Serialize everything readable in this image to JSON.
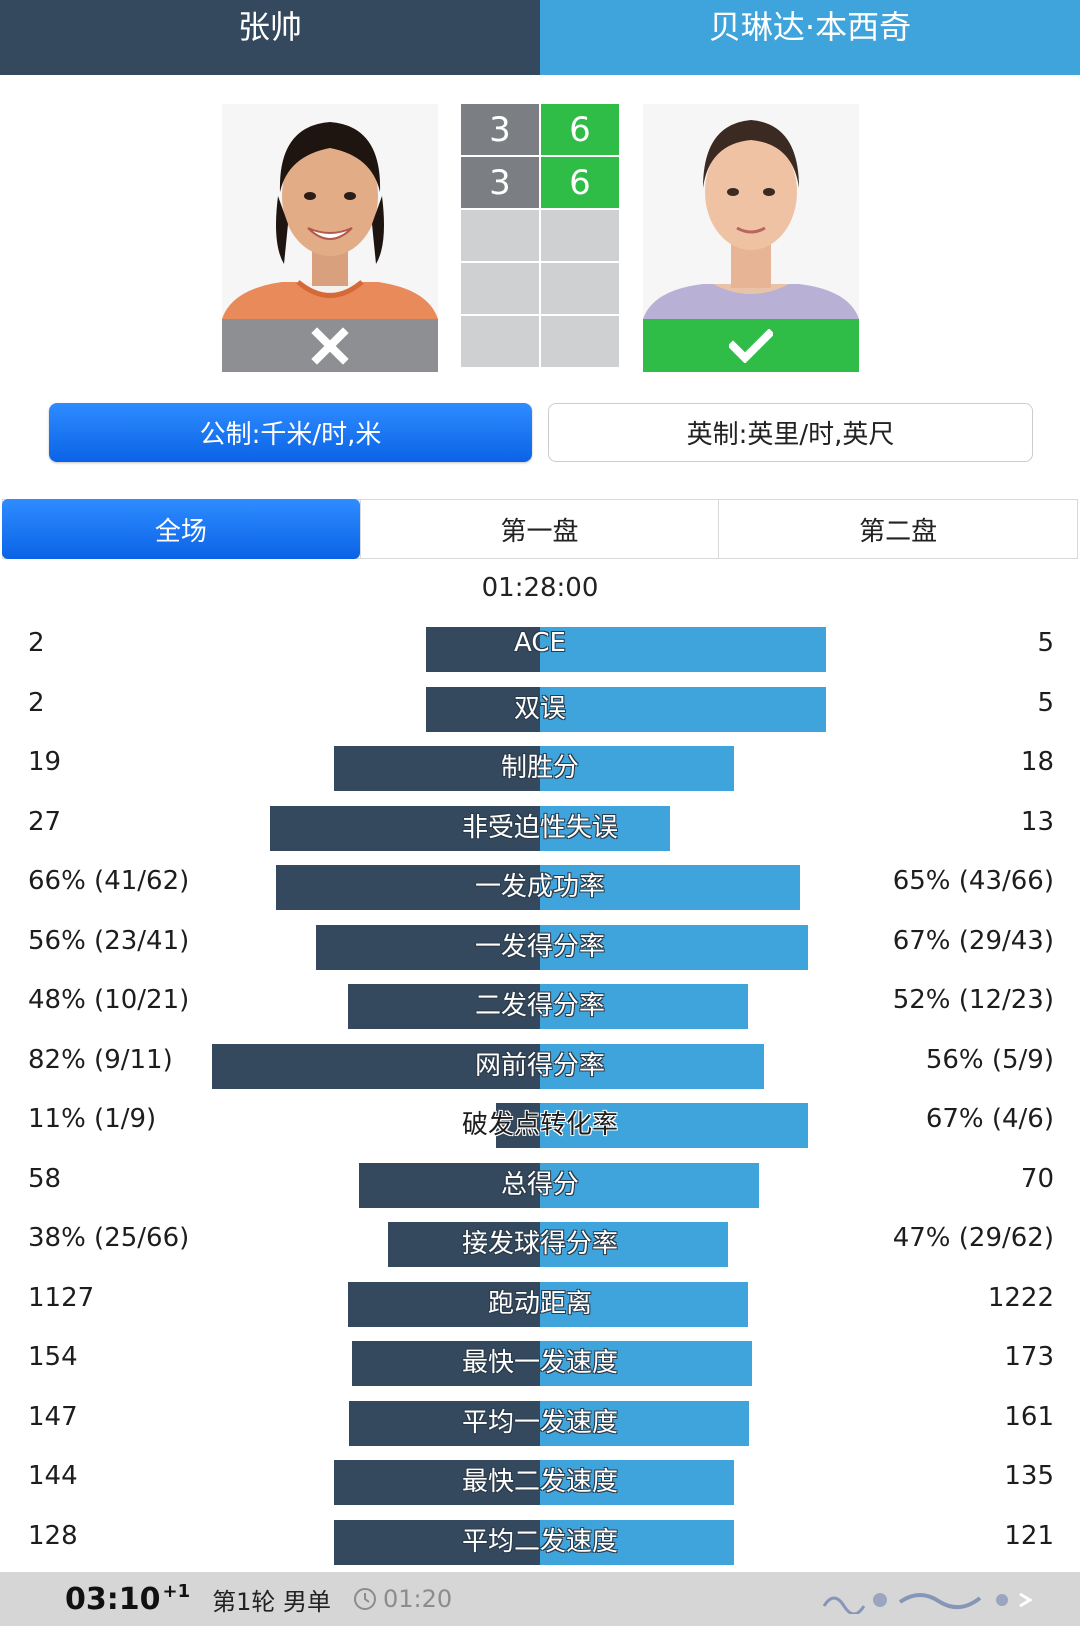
{
  "players": {
    "left": {
      "name": "张帅",
      "result": "loss",
      "result_icon": "x-mark-icon"
    },
    "right": {
      "name": "贝琳达·本西奇",
      "result": "win",
      "result_icon": "check-mark-icon"
    }
  },
  "scoreboard": {
    "sets": [
      {
        "left": "3",
        "right": "6"
      },
      {
        "left": "3",
        "right": "6"
      },
      {
        "left": "",
        "right": ""
      },
      {
        "left": "",
        "right": ""
      },
      {
        "left": "",
        "right": ""
      }
    ]
  },
  "units": {
    "metric_label": "公制:千米/时,米",
    "imperial_label": "英制:英里/时,英尺",
    "selected": "metric"
  },
  "tabs": [
    {
      "label": "全场",
      "active": true
    },
    {
      "label": "第一盘",
      "active": false
    },
    {
      "label": "第二盘",
      "active": false
    }
  ],
  "duration": "01:28:00",
  "stats": [
    {
      "label": "ACE",
      "left": "2",
      "right": "5",
      "left_share": 0.286,
      "right_share": 0.714
    },
    {
      "label": "双误",
      "left": "2",
      "right": "5",
      "left_share": 0.286,
      "right_share": 0.714
    },
    {
      "label": "制胜分",
      "left": "19",
      "right": "18",
      "left_share": 0.514,
      "right_share": 0.486
    },
    {
      "label": "非受迫性失误",
      "left": "27",
      "right": "13",
      "left_share": 0.675,
      "right_share": 0.325
    },
    {
      "label": "一发成功率",
      "left": "66% (41/62)",
      "right": "65% (43/66)",
      "left_share": 0.66,
      "right_share": 0.65
    },
    {
      "label": "一发得分率",
      "left": "56% (23/41)",
      "right": "67% (29/43)",
      "left_share": 0.56,
      "right_share": 0.67
    },
    {
      "label": "二发得分率",
      "left": "48% (10/21)",
      "right": "52% (12/23)",
      "left_share": 0.48,
      "right_share": 0.52
    },
    {
      "label": "网前得分率",
      "left": "82% (9/11)",
      "right": "56% (5/9)",
      "left_share": 0.82,
      "right_share": 0.56
    },
    {
      "label": "破发点转化率",
      "left": "11% (1/9)",
      "right": "67% (4/6)",
      "left_share": 0.11,
      "right_share": 0.67
    },
    {
      "label": "总得分",
      "left": "58",
      "right": "70",
      "left_share": 0.453,
      "right_share": 0.547
    },
    {
      "label": "接发球得分率",
      "left": "38% (25/66)",
      "right": "47% (29/62)",
      "left_share": 0.38,
      "right_share": 0.47
    },
    {
      "label": "跑动距离",
      "left": "1127",
      "right": "1222",
      "left_share": 0.48,
      "right_share": 0.52
    },
    {
      "label": "最快一发速度",
      "left": "154",
      "right": "173",
      "left_share": 0.471,
      "right_share": 0.529
    },
    {
      "label": "平均一发速度",
      "left": "147",
      "right": "161",
      "left_share": 0.477,
      "right_share": 0.523
    },
    {
      "label": "最快二发速度",
      "left": "144",
      "right": "135",
      "left_share": 0.516,
      "right_share": 0.484
    },
    {
      "label": "平均二发速度",
      "left": "128",
      "right": "121",
      "left_share": 0.514,
      "right_share": 0.486
    }
  ],
  "footer": {
    "time": "03:10",
    "time_sup": "+1",
    "round": "第1轮 男单",
    "clock": "01:20",
    "clock_icon": "clock-icon"
  },
  "colors": {
    "left_player": "#34495e",
    "right_player": "#3fa4db",
    "win": "#2fbd48",
    "loss": "#8d8f92",
    "accent": "#0a63e6"
  }
}
